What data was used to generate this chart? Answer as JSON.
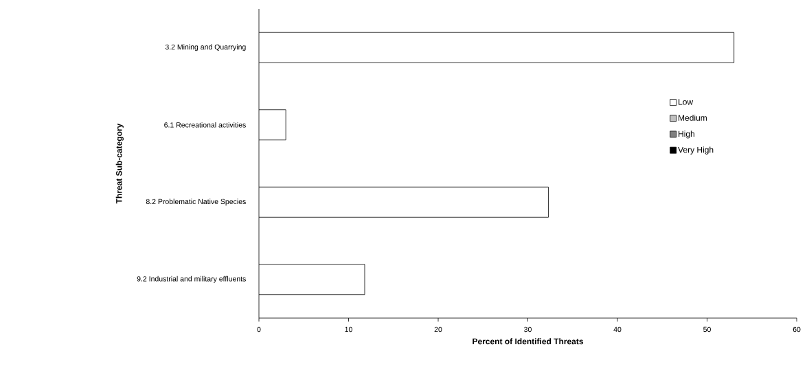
{
  "chart_data": {
    "type": "bar",
    "orientation": "horizontal",
    "stacked": true,
    "xlabel": "Percent of Identified Threats",
    "ylabel": "Threat Sub-category",
    "categories": [
      "3.2 Mining and Quarrying",
      "6.1 Recreational activities",
      "8.2 Problematic Native Species",
      "9.2 Industrial and military effluents"
    ],
    "series": [
      {
        "name": "Low",
        "color": "#ffffff",
        "values": [
          53,
          3,
          32.3,
          11.8
        ]
      },
      {
        "name": "Medium",
        "color": "#c0c0c0",
        "values": [
          0,
          0,
          0,
          0
        ]
      },
      {
        "name": "High",
        "color": "#808080",
        "values": [
          0,
          0,
          0,
          0
        ]
      },
      {
        "name": "Very High",
        "color": "#000000",
        "values": [
          0,
          0,
          0,
          0
        ]
      }
    ],
    "xlim": [
      0,
      60
    ],
    "xticks": [
      0,
      10,
      20,
      30,
      40,
      50,
      60
    ],
    "legend": "right",
    "grid": false
  }
}
